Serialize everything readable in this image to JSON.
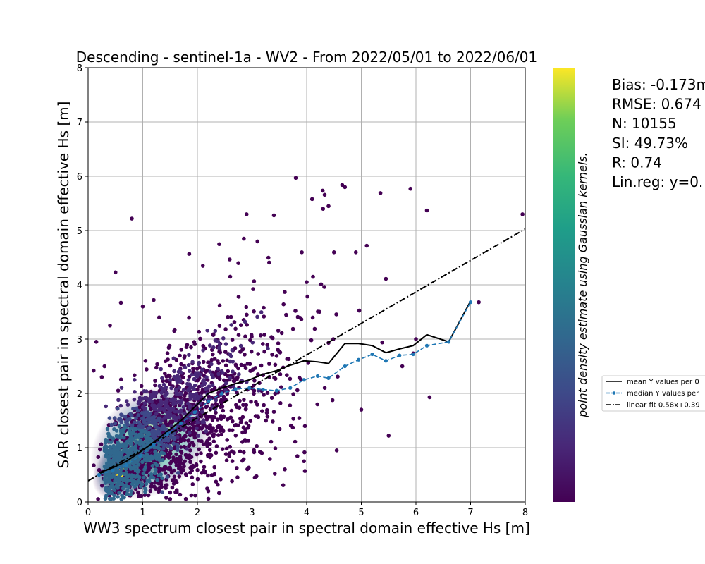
{
  "chart_data": {
    "type": "scatter",
    "title": "Descending - sentinel-1a - WV2 - From 2022/05/01 to 2022/06/01",
    "xlabel": "WW3 spectrum closest pair in spectral domain effective Hs [m]",
    "ylabel": "SAR closest pair in spectral domain effective Hs [m]",
    "xlim": [
      0,
      8
    ],
    "ylim": [
      0,
      8
    ],
    "xticks": [
      "0",
      "1",
      "2",
      "3",
      "4",
      "5",
      "6",
      "7",
      "8"
    ],
    "yticks": [
      "0",
      "1",
      "2",
      "3",
      "4",
      "5",
      "6",
      "7",
      "8"
    ],
    "grid": true,
    "colorbar_label": "point density estimate using Gaussian kernels.",
    "colormap": "viridis",
    "colors": {
      "mean_line": "#000000",
      "median_line": "#1f77b4",
      "fit_line": "#000000",
      "cmap_low": "#440154",
      "cmap_high": "#fde725"
    },
    "stats": [
      "Bias: -0.173m",
      "RMSE: 0.674",
      "N: 10155",
      "SI: 49.73%",
      "R: 0.74",
      "Lin.reg: y=0."
    ],
    "legend_position": "right, outside plot",
    "legend": [
      {
        "label": "mean Y values per 0",
        "style": "solid"
      },
      {
        "label": "median Y values per",
        "style": "dashed-marker"
      },
      {
        "label": "linear fit 0.58x+0.39",
        "style": "dashdot"
      }
    ],
    "series": [
      {
        "name": "mean Y values per 0",
        "x": [
          0.2,
          0.45,
          0.7,
          0.95,
          1.2,
          1.45,
          1.7,
          1.95,
          2.2,
          2.45,
          2.7,
          2.95,
          3.2,
          3.45,
          3.7,
          3.95,
          4.2,
          4.4,
          4.7,
          4.95,
          5.2,
          5.45,
          5.7,
          5.95,
          6.2,
          6.6,
          7.0
        ],
        "y": [
          0.54,
          0.63,
          0.75,
          0.92,
          1.1,
          1.3,
          1.5,
          1.75,
          2.0,
          2.1,
          2.18,
          2.25,
          2.35,
          2.42,
          2.52,
          2.6,
          2.58,
          2.55,
          2.92,
          2.92,
          2.88,
          2.75,
          2.82,
          2.88,
          3.08,
          2.95,
          3.7
        ]
      },
      {
        "name": "median Y values per",
        "x": [
          0.2,
          0.45,
          0.7,
          0.95,
          1.2,
          1.45,
          1.7,
          1.95,
          2.2,
          2.45,
          2.7,
          2.95,
          3.2,
          3.45,
          3.7,
          3.95,
          4.2,
          4.4,
          4.7,
          4.95,
          5.2,
          5.45,
          5.7,
          5.95,
          6.2,
          6.6,
          7.0
        ],
        "y": [
          0.5,
          0.58,
          0.68,
          0.85,
          1.05,
          1.25,
          1.45,
          1.65,
          1.85,
          2.0,
          2.08,
          2.1,
          2.07,
          2.05,
          2.1,
          2.25,
          2.32,
          2.28,
          2.5,
          2.62,
          2.72,
          2.6,
          2.7,
          2.72,
          2.88,
          2.95,
          3.68
        ]
      },
      {
        "name": "linear fit 0.58x+0.39",
        "x": [
          0,
          8
        ],
        "y": [
          0.39,
          5.03
        ]
      }
    ],
    "outliers": {
      "x": [
        0.8,
        0.5,
        1.0,
        0.4,
        0.15,
        0.3,
        3.8,
        4.65,
        4.7,
        5.35,
        5.9,
        6.2,
        7.95,
        2.9,
        3.4,
        4.1,
        4.3,
        4.4,
        4.5,
        3.1,
        2.85,
        2.75,
        2.1,
        1.2,
        4.9,
        5.1,
        5.45,
        6.25,
        7.15,
        5.5,
        1.85,
        2.4,
        1.3,
        0.6,
        0.25,
        0.1,
        1.6,
        2.2,
        3.05,
        3.6,
        3.95,
        4.55,
        5.0,
        5.75,
        6.0,
        3.3,
        2.6,
        4.0,
        0.55,
        1.05
      ],
      "y": [
        5.22,
        4.23,
        3.6,
        3.25,
        2.95,
        2.5,
        5.97,
        5.84,
        5.8,
        5.69,
        5.77,
        5.37,
        5.3,
        5.3,
        5.28,
        5.58,
        5.4,
        5.45,
        4.6,
        4.8,
        4.85,
        4.4,
        4.35,
        3.72,
        4.6,
        4.72,
        4.11,
        1.93,
        3.68,
        1.22,
        4.57,
        4.75,
        3.4,
        3.67,
        2.3,
        2.42,
        0.18,
        0.2,
        0.45,
        0.6,
        0.75,
        0.95,
        1.7,
        2.5,
        3.0,
        4.5,
        4.15,
        4.05,
        2.05,
        2.6
      ]
    }
  }
}
